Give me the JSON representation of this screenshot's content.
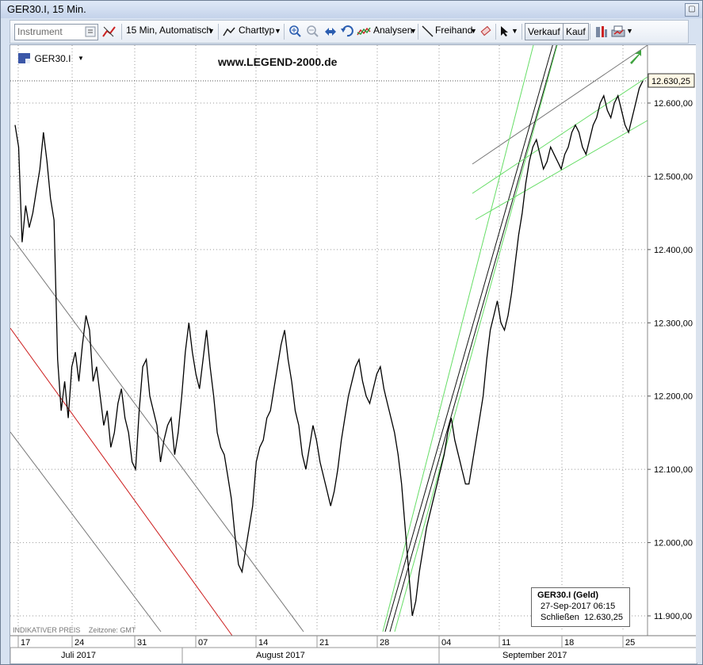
{
  "window": {
    "title": "GER30.I, 15 Min."
  },
  "toolbar": {
    "instrument_placeholder": "Instrument",
    "interval_label": "15 Min,  Automatisch",
    "charttype_label": "Charttyp",
    "analysen_label": "Analysen",
    "freihand_label": "Freihand",
    "verkauf_label": "Verkauf",
    "kauf_label": "Kauf"
  },
  "chart": {
    "symbol": "GER30.I",
    "watermark": "www.LEGEND-2000.de",
    "indicative": "INDIKATIVER PREIS",
    "timezone": "Zeitzone: GMT",
    "current_price": "12.630,25",
    "info": {
      "title": "GER30.I (Geld)",
      "date": "27-Sep-2017 06:15",
      "close_label": "Schließen",
      "close_value": "12.630,25"
    }
  },
  "chart_data": {
    "type": "line",
    "instrument": "GER30.I",
    "interval": "15 Min.",
    "ylim": [
      11890,
      12660
    ],
    "y_ticks": [
      "11.900,00",
      "12.000,00",
      "12.100,00",
      "12.200,00",
      "12.300,00",
      "12.400,00",
      "12.500,00",
      "12.600,00"
    ],
    "y_tick_values": [
      11900,
      12000,
      12100,
      12200,
      12300,
      12400,
      12500,
      12600
    ],
    "x_ticks": [
      "17",
      "24",
      "31",
      "07",
      "14",
      "21",
      "28",
      "04",
      "11",
      "18",
      "25"
    ],
    "month_labels": [
      "Juli 2017",
      "August 2017",
      "September 2017"
    ],
    "series": [
      {
        "values": [
          12570,
          12540,
          12410,
          12460,
          12430,
          12450,
          12480,
          12510,
          12560,
          12520,
          12470,
          12440,
          12250,
          12180,
          12220,
          12170,
          12240,
          12260,
          12220,
          12270,
          12310,
          12290,
          12220,
          12240,
          12200,
          12160,
          12180,
          12130,
          12150,
          12190,
          12210,
          12170,
          12150,
          12110,
          12100,
          12180,
          12240,
          12250,
          12200,
          12180,
          12160,
          12110,
          12140,
          12160,
          12170,
          12120,
          12150,
          12200,
          12260,
          12300,
          12260,
          12230,
          12210,
          12250,
          12290,
          12240,
          12200,
          12150,
          12130,
          12120,
          12090,
          12060,
          12010,
          11970,
          11960,
          11990,
          12020,
          12050,
          12110,
          12130,
          12140,
          12170,
          12180,
          12210,
          12240,
          12270,
          12290,
          12250,
          12220,
          12180,
          12160,
          12120,
          12100,
          12130,
          12160,
          12140,
          12110,
          12090,
          12070,
          12050,
          12070,
          12100,
          12140,
          12170,
          12200,
          12220,
          12240,
          12250,
          12220,
          12200,
          12190,
          12210,
          12230,
          12240,
          12210,
          12190,
          12170,
          12150,
          12120,
          12080,
          12020,
          11960,
          11900,
          11920,
          11960,
          11990,
          12020,
          12040,
          12060,
          12080,
          12100,
          12120,
          12150,
          12170,
          12140,
          12120,
          12100,
          12080,
          12080,
          12110,
          12140,
          12170,
          12200,
          12250,
          12290,
          12310,
          12330,
          12300,
          12290,
          12310,
          12340,
          12380,
          12420,
          12450,
          12490,
          12520,
          12540,
          12550,
          12530,
          12510,
          12520,
          12540,
          12530,
          12520,
          12510,
          12530,
          12540,
          12560,
          12570,
          12560,
          12540,
          12530,
          12550,
          12570,
          12580,
          12600,
          12610,
          12590,
          12580,
          12600,
          12610,
          12590,
          12570,
          12560,
          12580,
          12600,
          12620,
          12630
        ]
      }
    ],
    "price_marker": 12630.25,
    "info_box": {
      "title": "GER30.I (Geld)",
      "date": "27-Sep-2017 06:15",
      "close": 12630.25
    },
    "grid": true
  }
}
